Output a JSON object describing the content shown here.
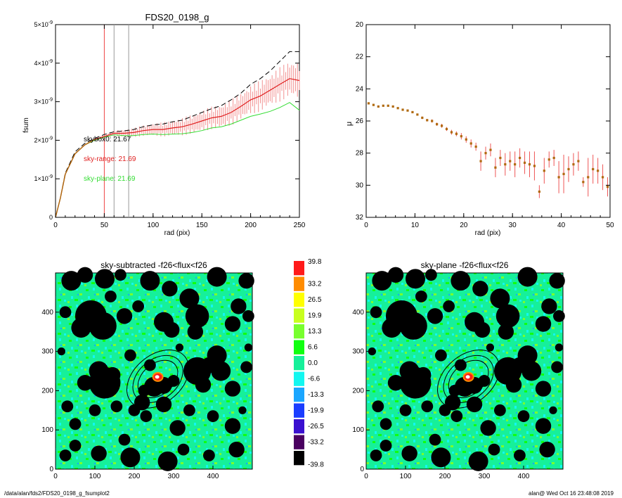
{
  "footer": {
    "left": "/data/alan/fds2/FDS20_0198_g_fsumplot2",
    "right": "alan@  Wed Oct 16 23:48:08 2019"
  },
  "colors": {
    "sky_red": "#e02020",
    "sky_plane": "#33dd33",
    "guide_red": "#ee4444",
    "guide_gray": "#999999",
    "data_brown": "#b06a10",
    "pink": "#f29090"
  },
  "chart_data": [
    {
      "id": "fsum",
      "type": "line",
      "title": "FDS20_0198_g",
      "xlabel": "rad (pix)",
      "ylabel": "fsum",
      "xlim": [
        0,
        250
      ],
      "ylim": [
        0,
        5e-09
      ],
      "xticks": [
        "0",
        "50",
        "100",
        "150",
        "200",
        "250"
      ],
      "yticks": [
        {
          "m": "0",
          "e": ""
        },
        {
          "m": "1×10",
          "e": "-9"
        },
        {
          "m": "2×10",
          "e": "-9"
        },
        {
          "m": "3×10",
          "e": "-9"
        },
        {
          "m": "4×10",
          "e": "-9"
        },
        {
          "m": "5×10",
          "e": "-9"
        }
      ],
      "vlines": [
        {
          "x": 50,
          "color": "red"
        },
        {
          "x": 60,
          "color": "gray"
        },
        {
          "x": 75,
          "color": "gray"
        }
      ],
      "annotations": [
        {
          "text": "skybox0: 21.67",
          "color": "black"
        },
        {
          "text": "sky-range: 21.69",
          "color": "red"
        },
        {
          "text": "sky-plane: 21.69",
          "color": "green"
        }
      ],
      "series": {
        "skybox0_dashed": {
          "x": [
            0,
            5,
            10,
            20,
            30,
            40,
            50,
            60,
            70,
            80,
            90,
            100,
            110,
            120,
            130,
            140,
            150,
            160,
            170,
            180,
            190,
            200,
            210,
            220,
            230,
            240,
            250
          ],
          "y": [
            0,
            5e-10,
            1.15e-09,
            1.7e-09,
            1.92e-09,
            2.05e-09,
            2.15e-09,
            2.22e-09,
            2.24e-09,
            2.28e-09,
            2.35e-09,
            2.4e-09,
            2.42e-09,
            2.48e-09,
            2.52e-09,
            2.62e-09,
            2.72e-09,
            2.82e-09,
            2.9e-09,
            3.05e-09,
            3.22e-09,
            3.45e-09,
            3.6e-09,
            3.8e-09,
            4.05e-09,
            4.3e-09,
            4.3e-09
          ]
        },
        "sky_range": {
          "x": [
            0,
            5,
            10,
            20,
            30,
            40,
            50,
            60,
            70,
            80,
            90,
            100,
            110,
            120,
            130,
            140,
            150,
            160,
            170,
            180,
            190,
            200,
            210,
            220,
            230,
            240,
            250
          ],
          "y": [
            0,
            5e-10,
            1.12e-09,
            1.65e-09,
            1.88e-09,
            2.02e-09,
            2.1e-09,
            2.18e-09,
            2.18e-09,
            2.2e-09,
            2.25e-09,
            2.28e-09,
            2.28e-09,
            2.32e-09,
            2.35e-09,
            2.42e-09,
            2.5e-09,
            2.58e-09,
            2.62e-09,
            2.72e-09,
            2.88e-09,
            3.05e-09,
            3.15e-09,
            3.3e-09,
            3.45e-09,
            3.6e-09,
            3.55e-09
          ]
        },
        "sky_plane": {
          "x": [
            0,
            5,
            10,
            20,
            30,
            40,
            50,
            60,
            70,
            80,
            90,
            100,
            110,
            120,
            130,
            140,
            150,
            160,
            170,
            180,
            190,
            200,
            210,
            220,
            230,
            240,
            250
          ],
          "y": [
            0,
            5e-10,
            1.12e-09,
            1.65e-09,
            1.88e-09,
            2e-09,
            2.08e-09,
            2.14e-09,
            2.12e-09,
            2.12e-09,
            2.15e-09,
            2.16e-09,
            2.15e-09,
            2.16e-09,
            2.17e-09,
            2.2e-09,
            2.25e-09,
            2.32e-09,
            2.35e-09,
            2.42e-09,
            2.52e-09,
            2.62e-09,
            2.68e-09,
            2.75e-09,
            2.85e-09,
            2.98e-09,
            2.78e-09
          ]
        }
      }
    },
    {
      "id": "mu",
      "type": "scatter",
      "xlabel": "rad (pix)",
      "ylabel": "μ",
      "xlim": [
        0,
        50
      ],
      "ylim": [
        32,
        20
      ],
      "xticks": [
        "0",
        "10",
        "20",
        "30",
        "40",
        "50"
      ],
      "yticks": [
        "20",
        "22",
        "24",
        "26",
        "28",
        "30",
        "32"
      ],
      "points": [
        [
          0.5,
          24.9,
          0.05
        ],
        [
          1.5,
          25.0,
          0.05
        ],
        [
          2.5,
          25.1,
          0.05
        ],
        [
          3.5,
          25.05,
          0.05
        ],
        [
          4.5,
          25.05,
          0.05
        ],
        [
          5.5,
          25.1,
          0.05
        ],
        [
          6.5,
          25.2,
          0.05
        ],
        [
          7.5,
          25.3,
          0.05
        ],
        [
          8.5,
          25.35,
          0.05
        ],
        [
          9.5,
          25.45,
          0.05
        ],
        [
          10.5,
          25.6,
          0.05
        ],
        [
          11.5,
          25.8,
          0.08
        ],
        [
          12.5,
          25.95,
          0.08
        ],
        [
          13.5,
          26.0,
          0.1
        ],
        [
          14.5,
          26.2,
          0.1
        ],
        [
          15.5,
          26.3,
          0.12
        ],
        [
          16.5,
          26.5,
          0.12
        ],
        [
          17.5,
          26.7,
          0.15
        ],
        [
          18.5,
          26.8,
          0.15
        ],
        [
          19.5,
          26.95,
          0.2
        ],
        [
          20.5,
          27.15,
          0.2
        ],
        [
          21.5,
          27.4,
          0.25
        ],
        [
          22.5,
          27.6,
          0.25
        ],
        [
          23.5,
          28.5,
          0.6
        ],
        [
          24.5,
          28.0,
          0.4
        ],
        [
          25.5,
          27.8,
          0.4
        ],
        [
          26.5,
          28.9,
          0.6
        ],
        [
          27.5,
          28.3,
          0.5
        ],
        [
          28.5,
          28.7,
          0.7
        ],
        [
          29.5,
          28.5,
          0.6
        ],
        [
          30.5,
          28.7,
          0.8
        ],
        [
          31.5,
          28.3,
          0.6
        ],
        [
          32.5,
          28.6,
          0.7
        ],
        [
          33.5,
          28.7,
          0.8
        ],
        [
          34.5,
          28.8,
          0.9
        ],
        [
          35.5,
          30.4,
          0.4
        ],
        [
          36.5,
          29.1,
          0.8
        ],
        [
          37.5,
          28.4,
          0.5
        ],
        [
          38.5,
          28.3,
          0.5
        ],
        [
          39.5,
          29.5,
          1.0
        ],
        [
          40.5,
          29.3,
          1.2
        ],
        [
          41.5,
          29.0,
          0.8
        ],
        [
          42.5,
          28.7,
          0.7
        ],
        [
          43.5,
          28.5,
          0.6
        ],
        [
          44.5,
          29.8,
          0.3
        ],
        [
          45.5,
          29.5,
          1.2
        ],
        [
          46.5,
          29.0,
          0.9
        ],
        [
          47.5,
          29.1,
          0.8
        ],
        [
          48.5,
          29.5,
          0.8
        ],
        [
          49.5,
          30.1,
          0.6
        ]
      ]
    },
    {
      "id": "img1",
      "type": "heatmap",
      "title": "sky-subtracted -f26<flux<f26",
      "xlim": [
        0,
        500
      ],
      "ylim": [
        0,
        500
      ],
      "xticks": [
        "0",
        "100",
        "200",
        "300",
        "400"
      ],
      "yticks": [
        "0",
        "100",
        "200",
        "300",
        "400"
      ]
    },
    {
      "id": "img2",
      "type": "heatmap",
      "title": "sky-plane -f26<flux<f26",
      "xlim": [
        0,
        500
      ],
      "ylim": [
        0,
        500
      ],
      "xticks": [
        "0",
        "100",
        "200",
        "300",
        "400"
      ],
      "yticks": [
        "0",
        "100",
        "200",
        "300",
        "400"
      ]
    },
    {
      "id": "colorbar",
      "type": "heatmap",
      "levels": [
        {
          "label": "39.8",
          "color": "#ff1a1a"
        },
        {
          "label": "33.2",
          "color": "#ff8c00"
        },
        {
          "label": "26.5",
          "color": "#ffff00"
        },
        {
          "label": "19.9",
          "color": "#c8ff1e"
        },
        {
          "label": "13.3",
          "color": "#78ff2e"
        },
        {
          "label": "6.6",
          "color": "#10ff10"
        },
        {
          "label": "0.0",
          "color": "#16f09a"
        },
        {
          "label": "-6.6",
          "color": "#12f7f0"
        },
        {
          "label": "-13.3",
          "color": "#1aa6ff"
        },
        {
          "label": "-19.9",
          "color": "#1a3dff"
        },
        {
          "label": "-26.5",
          "color": "#3a10d0"
        },
        {
          "label": "-33.2",
          "color": "#4a0060"
        },
        {
          "label": "-39.8",
          "color": "#000000"
        }
      ]
    }
  ]
}
